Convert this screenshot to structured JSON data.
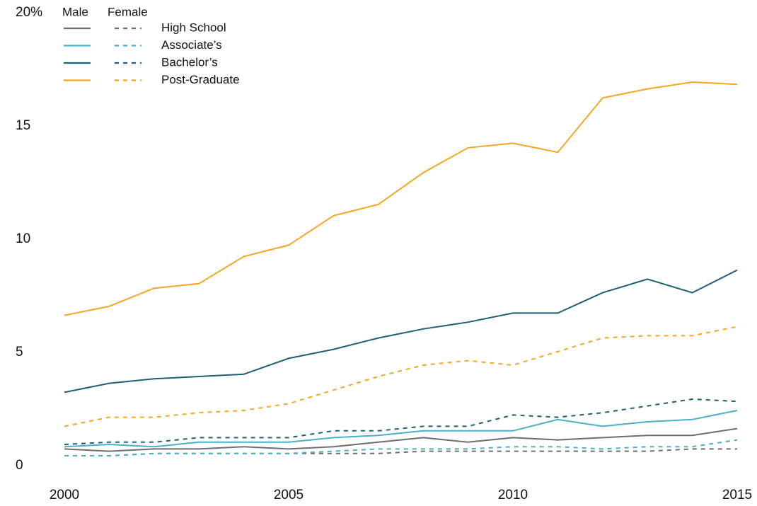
{
  "chart_data": {
    "type": "line",
    "x": [
      2000,
      2001,
      2002,
      2003,
      2004,
      2005,
      2006,
      2007,
      2008,
      2009,
      2010,
      2011,
      2012,
      2013,
      2014,
      2015
    ],
    "groups": [
      "Male",
      "Female"
    ],
    "group_dashes": [
      "none",
      "6 6"
    ],
    "series": [
      {
        "name": "High School",
        "color": "#6d6e71",
        "values": [
          [
            0.8,
            0.7,
            0.8,
            0.8,
            0.9,
            0.8,
            0.9,
            1.1,
            1.3,
            1.1,
            1.3,
            1.2,
            1.3,
            1.4,
            1.4,
            1.7
          ],
          [
            0.5,
            0.5,
            0.6,
            0.6,
            0.6,
            0.6,
            0.6,
            0.6,
            0.7,
            0.7,
            0.7,
            0.7,
            0.7,
            0.7,
            0.8,
            0.8
          ]
        ]
      },
      {
        "name": "Associate’s",
        "color": "#4aafc9",
        "values": [
          [
            0.9,
            1.0,
            0.9,
            1.1,
            1.1,
            1.1,
            1.3,
            1.4,
            1.6,
            1.6,
            1.6,
            2.1,
            1.8,
            2.0,
            2.1,
            2.5
          ],
          [
            0.5,
            0.5,
            0.6,
            0.6,
            0.6,
            0.6,
            0.7,
            0.8,
            0.8,
            0.8,
            0.9,
            0.9,
            0.8,
            0.9,
            0.9,
            1.2
          ]
        ]
      },
      {
        "name": "Bachelor’s",
        "color": "#1f5f73",
        "values": [
          [
            3.3,
            3.7,
            3.9,
            4.0,
            4.1,
            4.8,
            5.2,
            5.7,
            6.1,
            6.4,
            6.8,
            6.8,
            7.7,
            8.3,
            7.7,
            8.7
          ],
          [
            1.0,
            1.1,
            1.1,
            1.3,
            1.3,
            1.3,
            1.6,
            1.6,
            1.8,
            1.8,
            2.3,
            2.2,
            2.4,
            2.7,
            3.0,
            2.9
          ]
        ]
      },
      {
        "name": "Post-Graduate",
        "color": "#f5a623",
        "values": [
          [
            6.7,
            7.1,
            7.9,
            8.1,
            9.3,
            9.8,
            11.1,
            11.6,
            13.0,
            14.1,
            14.3,
            13.9,
            16.3,
            16.7,
            17.0,
            16.9
          ],
          [
            1.8,
            2.2,
            2.2,
            2.4,
            2.5,
            2.8,
            3.4,
            4.0,
            4.5,
            4.7,
            4.5,
            5.1,
            5.7,
            5.8,
            5.8,
            6.2
          ]
        ]
      }
    ],
    "xlim": [
      2000,
      2015
    ],
    "xticks": [
      2000,
      2005,
      2010,
      2015
    ],
    "ylim": [
      0,
      20
    ],
    "yticks": [
      0,
      5,
      10,
      15,
      {
        "value": 20,
        "label": "20%"
      }
    ],
    "grid": false
  }
}
